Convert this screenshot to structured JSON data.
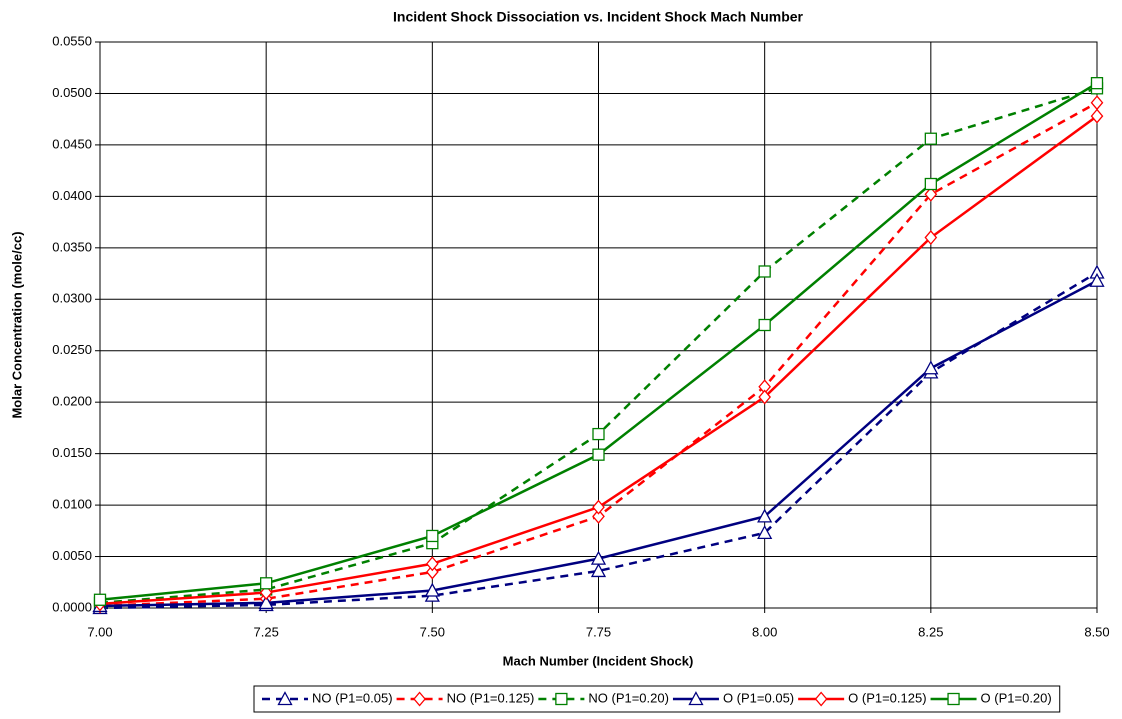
{
  "chart_data": {
    "type": "line",
    "title": "Incident Shock Dissociation vs. Incident Shock Mach Number",
    "x_label": "Mach Number (Incident Shock)",
    "y_label": "Molar Concentration (mole/cc)",
    "x": [
      7.0,
      7.25,
      7.5,
      7.75,
      8.0,
      8.25,
      8.5
    ],
    "xlim": [
      7.0,
      8.5
    ],
    "xticks": [
      {
        "value": 7.0,
        "label": "7.00"
      },
      {
        "value": 7.25,
        "label": "7.25"
      },
      {
        "value": 7.5,
        "label": "7.50"
      },
      {
        "value": 7.75,
        "label": "7.75"
      },
      {
        "value": 8.0,
        "label": "8.00"
      },
      {
        "value": 8.25,
        "label": "8.25"
      },
      {
        "value": 8.5,
        "label": "8.50"
      }
    ],
    "ylim": [
      0,
      0.055
    ],
    "yticks": [
      {
        "value": 0,
        "label": "0.0000"
      },
      {
        "value": 0.005,
        "label": "0.0050"
      },
      {
        "value": 0.01,
        "label": "0.0100"
      },
      {
        "value": 0.015,
        "label": "0.0150"
      },
      {
        "value": 0.02,
        "label": "0.0200"
      },
      {
        "value": 0.025,
        "label": "0.0250"
      },
      {
        "value": 0.03,
        "label": "0.0300"
      },
      {
        "value": 0.035,
        "label": "0.0350"
      },
      {
        "value": 0.04,
        "label": "0.0400"
      },
      {
        "value": 0.045,
        "label": "0.0450"
      },
      {
        "value": 0.05,
        "label": "0.0500"
      },
      {
        "value": 0.055,
        "label": "0.0550"
      }
    ],
    "grid": true,
    "legend": "bottom",
    "series": [
      {
        "name": "NO (P1=0.05)",
        "color": "#000080",
        "dash": true,
        "marker": "triangle",
        "values": [
          0.0,
          0.0003,
          0.0012,
          0.0036,
          0.0073,
          0.0229,
          0.0326
        ]
      },
      {
        "name": "NO (P1=0.125)",
        "color": "#ff0000",
        "dash": true,
        "marker": "diamond",
        "values": [
          0.0002,
          0.0009,
          0.0035,
          0.0089,
          0.0215,
          0.0402,
          0.0491
        ]
      },
      {
        "name": "NO (P1=0.20)",
        "color": "#008000",
        "dash": true,
        "marker": "square",
        "values": [
          0.0005,
          0.0018,
          0.0063,
          0.0169,
          0.0327,
          0.0456,
          0.0505
        ]
      },
      {
        "name": "O (P1=0.05)",
        "color": "#000080",
        "dash": false,
        "marker": "triangle",
        "values": [
          0.0002,
          0.0005,
          0.0017,
          0.0048,
          0.0089,
          0.0233,
          0.0318
        ]
      },
      {
        "name": "O (P1=0.125)",
        "color": "#ff0000",
        "dash": false,
        "marker": "diamond",
        "values": [
          0.0004,
          0.0015,
          0.0043,
          0.0098,
          0.0205,
          0.036,
          0.0478
        ]
      },
      {
        "name": "O (P1=0.20)",
        "color": "#008000",
        "dash": false,
        "marker": "square",
        "values": [
          0.0008,
          0.0024,
          0.007,
          0.0149,
          0.0275,
          0.0412,
          0.051
        ]
      }
    ]
  }
}
